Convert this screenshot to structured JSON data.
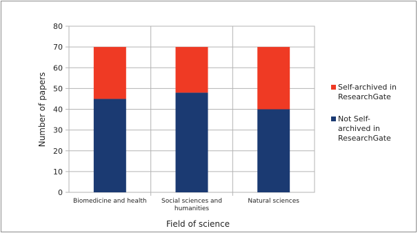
{
  "chart_data": {
    "type": "bar",
    "stacked": true,
    "categories": [
      "Biomedicine and health",
      "Social sciences and humanities",
      "Natural sciences"
    ],
    "category_lines": [
      [
        "Biomedicine and health"
      ],
      [
        "Social sciences and",
        "humanities"
      ],
      [
        "Natural sciences"
      ]
    ],
    "series": [
      {
        "name": "Not Self-archived in ResearchGate",
        "name_lines": [
          "Not Self-",
          "archived in",
          "ResearchGate"
        ],
        "color": "#1b3a72",
        "values": [
          45,
          48,
          40
        ]
      },
      {
        "name": "Self-archived in ResearchGate",
        "name_lines": [
          "Self-archived in",
          "ResearchGate"
        ],
        "color": "#ef3a24",
        "values": [
          25,
          22,
          30
        ]
      }
    ],
    "xlabel": "Field of science",
    "ylabel": "Number of papers",
    "ylim": [
      0,
      80
    ],
    "yticks": [
      0,
      10,
      20,
      30,
      40,
      50,
      60,
      70,
      80
    ],
    "grid": true,
    "legend": "right"
  }
}
